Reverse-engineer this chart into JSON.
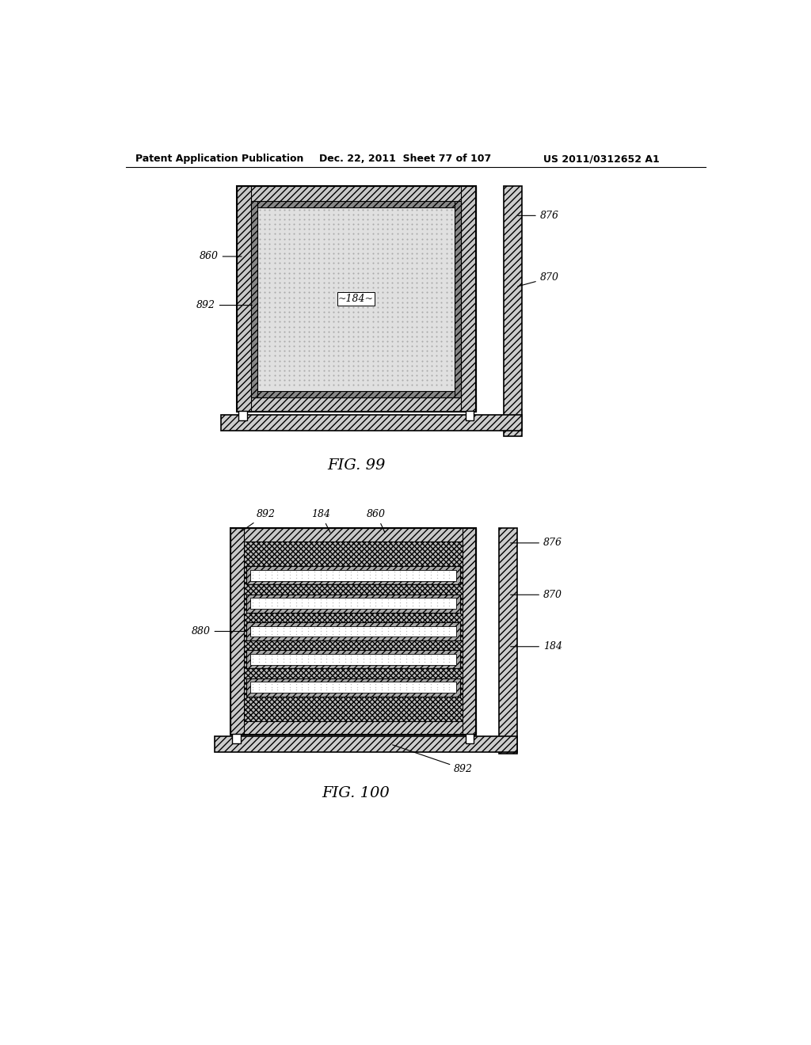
{
  "header_left": "Patent Application Publication",
  "header_mid": "Dec. 22, 2011  Sheet 77 of 107",
  "header_right": "US 2011/0312652 A1",
  "fig99_caption": "FIG. 99",
  "fig100_caption": "FIG. 100",
  "background_color": "#ffffff",
  "text_color": "#000000"
}
